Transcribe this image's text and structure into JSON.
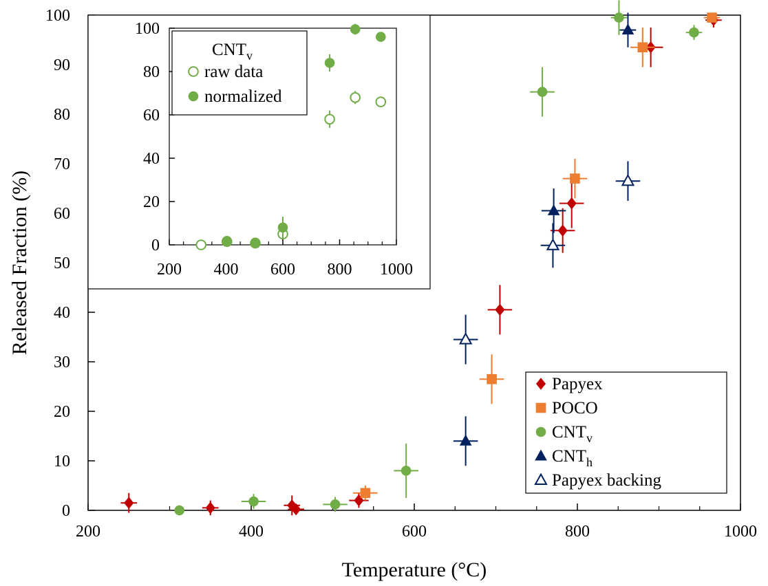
{
  "chart_data": [
    {
      "type": "scatter",
      "xlabel": "Temperature (°C)",
      "ylabel": "Released Fraction (%)",
      "xlim": [
        200,
        1000
      ],
      "ylim": [
        0,
        100
      ],
      "xticks": [
        200,
        400,
        600,
        800,
        1000
      ],
      "yticks": [
        0,
        10,
        20,
        30,
        40,
        50,
        60,
        70,
        80,
        90,
        100
      ],
      "legend_position": "bottom-right",
      "series": [
        {
          "name": "Papyex",
          "name_sub": "",
          "marker": "diamond",
          "filled": true,
          "color": "#c00000",
          "points": [
            {
              "x": 250,
              "y": 1.5,
              "xerr": 10,
              "yerr": 2
            },
            {
              "x": 350,
              "y": 0.5,
              "xerr": 10,
              "yerr": 1.5
            },
            {
              "x": 450,
              "y": 1.0,
              "xerr": 10,
              "yerr": 2
            },
            {
              "x": 455,
              "y": 0.2,
              "xerr": 10,
              "yerr": 1
            },
            {
              "x": 532,
              "y": 2.0,
              "xerr": 12,
              "yerr": 1.5
            },
            {
              "x": 705,
              "y": 40.5,
              "xerr": 15,
              "yerr": 5
            },
            {
              "x": 782,
              "y": 56.5,
              "xerr": 15,
              "yerr": 4.5
            },
            {
              "x": 793,
              "y": 62.0,
              "xerr": 15,
              "yerr": 5
            },
            {
              "x": 890,
              "y": 93.5,
              "xerr": 15,
              "yerr": 4
            },
            {
              "x": 967,
              "y": 99.0,
              "xerr": 10,
              "yerr": 1.5
            }
          ]
        },
        {
          "name": "POCO",
          "name_sub": "",
          "marker": "square",
          "filled": true,
          "color": "#ed7d31",
          "points": [
            {
              "x": 540,
              "y": 3.5,
              "xerr": 15,
              "yerr": 1.5
            },
            {
              "x": 695,
              "y": 26.5,
              "xerr": 15,
              "yerr": 5
            },
            {
              "x": 797,
              "y": 67.0,
              "xerr": 15,
              "yerr": 4
            },
            {
              "x": 880,
              "y": 93.5,
              "xerr": 15,
              "yerr": 4
            },
            {
              "x": 965,
              "y": 99.5,
              "xerr": 10,
              "yerr": 1
            }
          ]
        },
        {
          "name": "CNT",
          "name_sub": "v",
          "marker": "circle",
          "filled": true,
          "color": "#70ad47",
          "points": [
            {
              "x": 312,
              "y": 0.0,
              "xerr": 0,
              "yerr": 1
            },
            {
              "x": 403,
              "y": 1.8,
              "xerr": 15,
              "yerr": 1.5
            },
            {
              "x": 503,
              "y": 1.2,
              "xerr": 15,
              "yerr": 1.5
            },
            {
              "x": 590,
              "y": 8.0,
              "xerr": 15,
              "yerr": 5.5
            },
            {
              "x": 757,
              "y": 84.5,
              "xerr": 15,
              "yerr": 5
            },
            {
              "x": 851,
              "y": 99.5,
              "xerr": 10,
              "yerr": 3.5
            },
            {
              "x": 943,
              "y": 96.5,
              "xerr": 10,
              "yerr": 1.5
            }
          ]
        },
        {
          "name": "CNT",
          "name_sub": "h",
          "marker": "triangle",
          "filled": true,
          "color": "#002060",
          "points": [
            {
              "x": 663,
              "y": 14.0,
              "xerr": 15,
              "yerr": 5
            },
            {
              "x": 771,
              "y": 60.5,
              "xerr": 15,
              "yerr": 4.5
            },
            {
              "x": 862,
              "y": 97.0,
              "xerr": 10,
              "yerr": 3.5
            }
          ]
        },
        {
          "name": "Papyex backing",
          "name_sub": "",
          "marker": "triangle",
          "filled": false,
          "color": "#002060",
          "points": [
            {
              "x": 663,
              "y": 34.5,
              "xerr": 15,
              "yerr": 5
            },
            {
              "x": 770,
              "y": 53.5,
              "xerr": 15,
              "yerr": 4.5
            },
            {
              "x": 862,
              "y": 66.5,
              "xerr": 15,
              "yerr": 4
            }
          ]
        }
      ]
    },
    {
      "type": "scatter",
      "xlabel": "",
      "ylabel": "",
      "xlim": [
        200,
        1000
      ],
      "ylim": [
        0,
        100
      ],
      "xticks": [
        200,
        400,
        600,
        800,
        1000
      ],
      "yticks": [
        0,
        20,
        40,
        60,
        80,
        100
      ],
      "legend_title": "CNT",
      "legend_title_sub": "v",
      "legend_position": "top-left",
      "series": [
        {
          "name": "raw data",
          "marker": "circle",
          "filled": false,
          "color": "#70ad47",
          "points": [
            {
              "x": 312,
              "y": 0.0,
              "yerr": 0
            },
            {
              "x": 403,
              "y": 1.5,
              "yerr": 0
            },
            {
              "x": 503,
              "y": 0.8,
              "yerr": 0
            },
            {
              "x": 600,
              "y": 5.0,
              "yerr": 0
            },
            {
              "x": 765,
              "y": 58.0,
              "yerr": 4
            },
            {
              "x": 855,
              "y": 68.0,
              "yerr": 3
            },
            {
              "x": 945,
              "y": 66.0,
              "yerr": 0
            }
          ]
        },
        {
          "name": "normalized",
          "marker": "circle",
          "filled": true,
          "color": "#70ad47",
          "points": [
            {
              "x": 403,
              "y": 1.8,
              "yerr": 0
            },
            {
              "x": 503,
              "y": 1.0,
              "yerr": 0
            },
            {
              "x": 600,
              "y": 8.0,
              "yerr": 5
            },
            {
              "x": 765,
              "y": 84.0,
              "yerr": 4
            },
            {
              "x": 855,
              "y": 99.5,
              "yerr": 2.5
            },
            {
              "x": 945,
              "y": 96.0,
              "yerr": 0
            }
          ]
        }
      ]
    }
  ]
}
